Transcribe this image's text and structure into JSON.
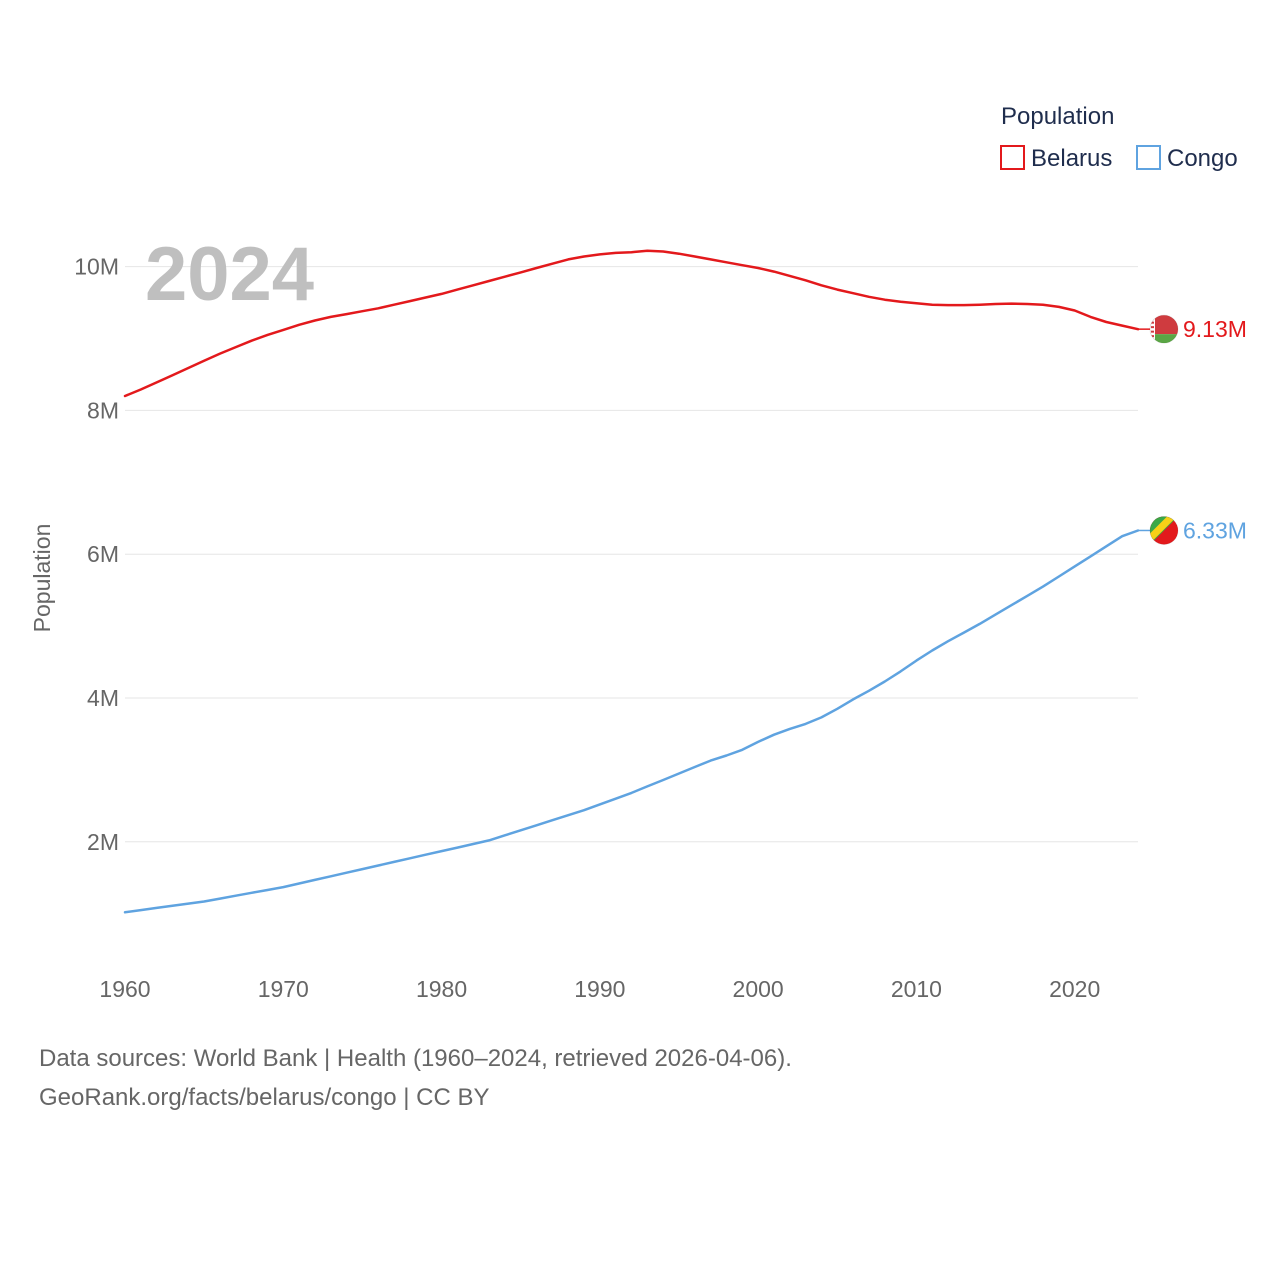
{
  "chart_data": {
    "type": "line",
    "title": "",
    "watermark_year": "2024",
    "xlabel": "",
    "ylabel": "Population",
    "xlim": [
      1960,
      2024
    ],
    "ylim": [
      0,
      10700000
    ],
    "x_ticks": [
      1960,
      1970,
      1980,
      1990,
      2000,
      2010,
      2020
    ],
    "x_tick_labels": [
      "1960",
      "1970",
      "1980",
      "1990",
      "2000",
      "2010",
      "2020"
    ],
    "y_ticks": [
      2000000,
      4000000,
      6000000,
      8000000,
      10000000
    ],
    "y_tick_labels": [
      "2M",
      "4M",
      "6M",
      "8M",
      "10M"
    ],
    "grid": true,
    "legend": {
      "title": "Population",
      "position": "top-right"
    },
    "x": [
      1960,
      1961,
      1962,
      1963,
      1964,
      1965,
      1966,
      1967,
      1968,
      1969,
      1970,
      1971,
      1972,
      1973,
      1974,
      1975,
      1976,
      1977,
      1978,
      1979,
      1980,
      1981,
      1982,
      1983,
      1984,
      1985,
      1986,
      1987,
      1988,
      1989,
      1990,
      1991,
      1992,
      1993,
      1994,
      1995,
      1996,
      1997,
      1998,
      1999,
      2000,
      2001,
      2002,
      2003,
      2004,
      2005,
      2006,
      2007,
      2008,
      2009,
      2010,
      2011,
      2012,
      2013,
      2014,
      2015,
      2016,
      2017,
      2018,
      2019,
      2020,
      2021,
      2022,
      2023,
      2024
    ],
    "series": [
      {
        "name": "Belarus",
        "color": "#e3191c",
        "end_label": "9.13M",
        "values": [
          8200000,
          8290000,
          8390000,
          8490000,
          8590000,
          8690000,
          8790000,
          8880000,
          8970000,
          9050000,
          9120000,
          9190000,
          9250000,
          9300000,
          9340000,
          9380000,
          9420000,
          9470000,
          9520000,
          9570000,
          9620000,
          9680000,
          9740000,
          9800000,
          9860000,
          9920000,
          9980000,
          10040000,
          10100000,
          10140000,
          10170000,
          10190000,
          10200000,
          10220000,
          10210000,
          10180000,
          10140000,
          10100000,
          10060000,
          10020000,
          9980000,
          9930000,
          9870000,
          9810000,
          9740000,
          9680000,
          9630000,
          9580000,
          9540000,
          9510000,
          9490000,
          9470000,
          9465000,
          9465000,
          9470000,
          9480000,
          9485000,
          9480000,
          9470000,
          9440000,
          9390000,
          9300000,
          9230000,
          9180000,
          9130000
        ]
      },
      {
        "name": "Congo",
        "color": "#5fa3e0",
        "end_label": "6.33M",
        "values": [
          1020000,
          1050000,
          1080000,
          1110000,
          1140000,
          1170000,
          1210000,
          1250000,
          1290000,
          1330000,
          1370000,
          1420000,
          1470000,
          1520000,
          1570000,
          1620000,
          1670000,
          1720000,
          1770000,
          1820000,
          1870000,
          1920000,
          1970000,
          2020000,
          2090000,
          2160000,
          2230000,
          2300000,
          2370000,
          2440000,
          2520000,
          2600000,
          2680000,
          2770000,
          2860000,
          2950000,
          3040000,
          3130000,
          3200000,
          3280000,
          3390000,
          3490000,
          3570000,
          3640000,
          3730000,
          3850000,
          3980000,
          4100000,
          4230000,
          4370000,
          4520000,
          4660000,
          4790000,
          4910000,
          5030000,
          5160000,
          5290000,
          5420000,
          5550000,
          5690000,
          5830000,
          5970000,
          6110000,
          6250000,
          6330000
        ]
      }
    ]
  },
  "footer": {
    "line1": "Data sources: World Bank | Health (1960–2024, retrieved 2026-04-06).",
    "line2": "GeoRank.org/facts/belarus/congo | CC BY"
  }
}
